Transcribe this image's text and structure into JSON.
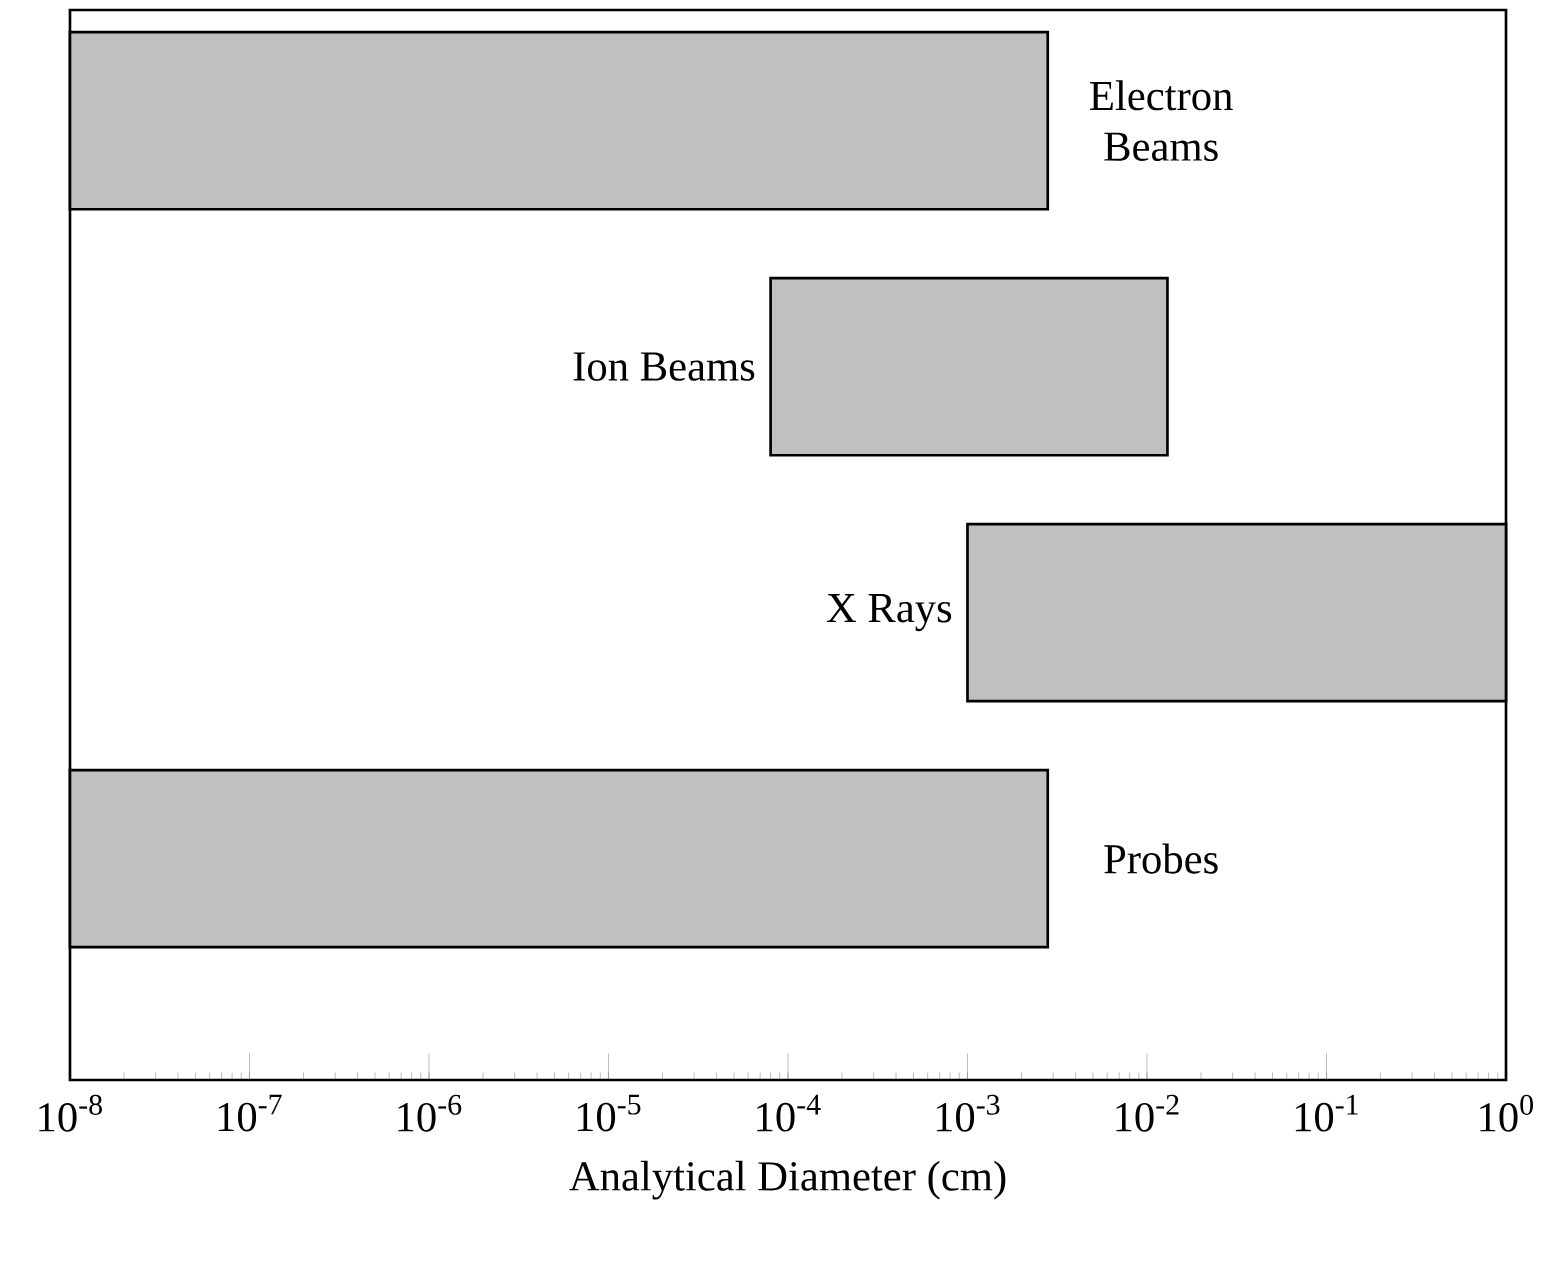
{
  "chart_data": {
    "type": "bar",
    "orientation": "horizontal",
    "log": "x",
    "xlabel": "Analytical Diameter (cm)",
    "categories": [
      "Electron Beams",
      "Ion Beams",
      "X Rays",
      "Probes"
    ],
    "base": [
      1e-08,
      8e-05,
      0.001,
      1e-08
    ],
    "values": [
      0.00279999,
      0.01292,
      0.999,
      0.00279999
    ],
    "color": "#c0c0c0",
    "xlim": [
      1e-08,
      1
    ],
    "xticks": [
      {
        "value": 1e-08,
        "label": "10$^{-8}$"
      },
      {
        "value": 1e-07,
        "label": "10$^{-7}$"
      },
      {
        "value": 1e-06,
        "label": "10$^{-6}$"
      },
      {
        "value": 1e-05,
        "label": "10$^{-5}$"
      },
      {
        "value": 0.0001,
        "label": "10$^{-4}$"
      },
      {
        "value": 0.001,
        "label": "10$^{-3}$"
      },
      {
        "value": 0.01,
        "label": "10$^{-2}$"
      },
      {
        "value": 0.1,
        "label": "10$^{-1}$"
      },
      {
        "value": 1,
        "label": "10$^{0}$"
      }
    ]
  }
}
